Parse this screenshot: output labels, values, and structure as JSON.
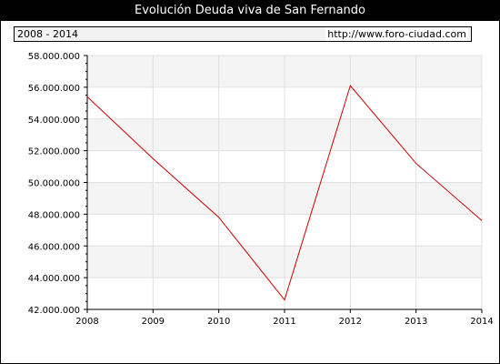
{
  "header": {
    "title": "Evolución Deuda viva de San Fernando",
    "range_label": "2008 - 2014",
    "site_label": "http://www.foro-ciudad.com"
  },
  "colors": {
    "line": "#cc0000",
    "band": "#f4f4f4",
    "grid": "#e0e0e0"
  },
  "chart_data": {
    "type": "line",
    "title": "Evolución Deuda viva de San Fernando",
    "xlabel": "",
    "ylabel": "",
    "x": [
      "2008",
      "2009",
      "2010",
      "2011",
      "2012",
      "2013",
      "2014"
    ],
    "series": [
      {
        "values": [
          55400000,
          51500000,
          47800000,
          42600000,
          56100000,
          51200000,
          47600000
        ]
      }
    ],
    "ylim": [
      42000000,
      58000000
    ],
    "y_ticks": [
      "42.000.000",
      "44.000.000",
      "46.000.000",
      "48.000.000",
      "50.000.000",
      "52.000.000",
      "54.000.000",
      "56.000.000",
      "58.000.000"
    ],
    "grid": true,
    "legend": "none"
  }
}
